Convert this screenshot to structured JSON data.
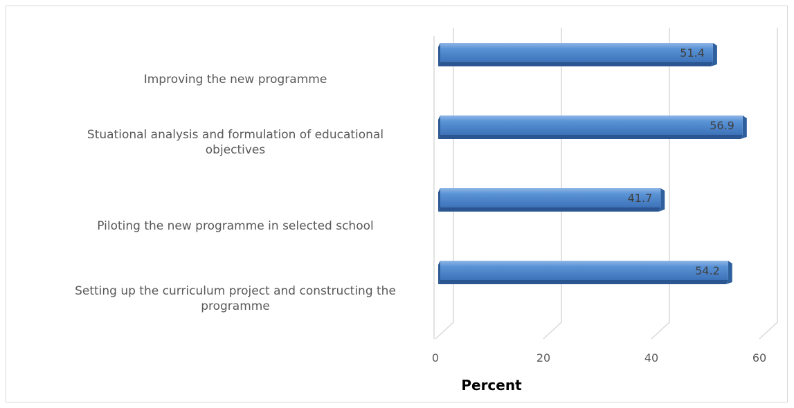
{
  "chart_data": {
    "type": "bar",
    "orientation": "horizontal",
    "categories": [
      "Improving the new programme",
      "Stuational analysis and formulation of educational objectives",
      "Piloting the new programme in selected school",
      "Setting up the curriculum project and constructing the programme"
    ],
    "category_lines": [
      [
        "Improving the new programme"
      ],
      [
        "Stuational analysis and formulation of educational",
        "objectives"
      ],
      [
        "Piloting the new programme in selected school"
      ],
      [
        "Setting up the curriculum project and constructing the",
        "programme"
      ]
    ],
    "values": [
      51.4,
      56.9,
      41.7,
      54.2
    ],
    "value_labels": [
      "51.4",
      "56.9",
      "41.7",
      "54.2"
    ],
    "xlabel": "Percent",
    "xlim": [
      0,
      60
    ],
    "xticks": [
      0,
      20,
      40,
      60
    ],
    "xtick_labels": [
      "0",
      "20",
      "40",
      "60"
    ],
    "grid": true,
    "legend": "none",
    "bar_color": "#4a86cc"
  }
}
